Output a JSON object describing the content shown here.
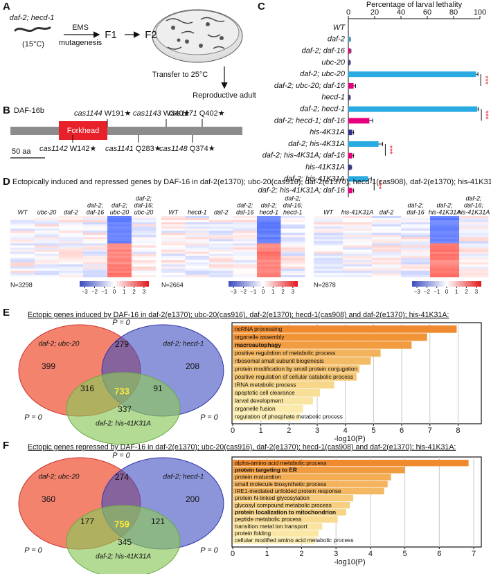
{
  "panel_a": {
    "label": "A",
    "strain": "daf-2; hecd-1",
    "temperature": "(15°C)",
    "treatment": "EMS",
    "treatment_detail": "mutagenesis",
    "f1": "F1",
    "f2": "F2",
    "transfer": "Transfer to 25°C",
    "outcome": "Reproductive adult"
  },
  "panel_b": {
    "label": "B",
    "protein": "DAF-16b",
    "domain": "Forkhead",
    "scale_bar": "50 aa",
    "mutations": [
      {
        "allele": "cas1144",
        "change": "W191★"
      },
      {
        "allele": "cas1143",
        "change": "W340★"
      },
      {
        "allele": "cas1171",
        "change": "Q402★"
      },
      {
        "allele": "cas1142",
        "change": "W142★"
      },
      {
        "allele": "cas1141",
        "change": "Q283★"
      },
      {
        "allele": "cas1148",
        "change": "Q374★"
      }
    ]
  },
  "panel_c": {
    "label": "C",
    "chart": {
      "type": "bar",
      "orientation": "horizontal",
      "title": "Percentage of larval lethality",
      "categories": [
        "WT",
        "daf-2",
        "daf-2; daf-16",
        "ubc-20",
        "daf-2; ubc-20",
        "daf-2; ubc-20; daf-16",
        "hecd-1",
        "daf-2; hecd-1",
        "daf-2; hecd-1; daf-16",
        "his-4K31A",
        "daf-2; his-4K31A",
        "daf-2; his-4K31A; daf-16",
        "his-41K31A",
        "daf-2; his-41K31A",
        "daf-2; his-41K31A; daf-16"
      ],
      "values": [
        0,
        1,
        1.5,
        1,
        97,
        4,
        1,
        98,
        16,
        3,
        23,
        3,
        2,
        15,
        3
      ],
      "errors": [
        0,
        0.5,
        0.5,
        0.5,
        1.5,
        1.5,
        0.5,
        1,
        2.5,
        1,
        3,
        1,
        0.5,
        2.5,
        1
      ],
      "colors": [
        "#2e3192",
        "#29abe2",
        "#e6007e",
        "#2e3192",
        "#29abe2",
        "#e6007e",
        "#2e3192",
        "#29abe2",
        "#e6007e",
        "#2e3192",
        "#29abe2",
        "#e6007e",
        "#2e3192",
        "#29abe2",
        "#e6007e"
      ],
      "xlim": [
        0,
        100
      ],
      "xticks": [
        0,
        20,
        40,
        60,
        80,
        100
      ],
      "significance": [
        "***",
        "***",
        "***",
        "***"
      ],
      "significance_color": "#e8202a"
    }
  },
  "panel_d": {
    "label": "D",
    "title": "Ectopically induced and repressed genes by DAF-16 in daf-2(e1370); ubc-20(cas916), daf-2(e1370); hecd-1(cas908), daf-2(e1370); his-41K31A",
    "heatmaps": [
      {
        "columns": [
          [
            "WT"
          ],
          [
            "ubc-20"
          ],
          [
            "daf-2"
          ],
          [
            "daf-2;",
            "daf-16"
          ],
          [
            "daf-2;",
            "ubc-20"
          ],
          [
            "daf-2;",
            "daf-16;",
            "ubc-20"
          ]
        ],
        "count": "N=3298"
      },
      {
        "columns": [
          [
            "WT"
          ],
          [
            "hecd-1"
          ],
          [
            "daf-2"
          ],
          [
            "daf-2;",
            "daf-16"
          ],
          [
            "daf-2;",
            "hecd-1"
          ],
          [
            "daf-2;",
            "daf-16;",
            "hecd-1"
          ]
        ],
        "count": "N=2664"
      },
      {
        "columns": [
          [
            "WT"
          ],
          [
            "his-41K31A"
          ],
          [
            "daf-2"
          ],
          [
            "daf-2;",
            "daf-16"
          ],
          [
            "daf-2;",
            "his-41K31A"
          ],
          [
            "daf-2;",
            "daf-16;",
            "his-41K31A"
          ]
        ],
        "count": "N=2878"
      }
    ],
    "colorbar_lim": [
      -3.5,
      3.5
    ],
    "colorbar_ticks": [
      {
        "value": -3,
        "label": "−3"
      },
      {
        "value": -2,
        "label": "−2"
      },
      {
        "value": -1,
        "label": "−1"
      },
      0,
      1,
      2,
      3
    ]
  },
  "panel_e": {
    "label": "E",
    "title": "Ectopic genes induced by DAF-16 in daf-2(e1370); ubc-20(cas916), daf-2(e1370); hecd-1(cas908) and daf-2(e1370); his-41K31A:",
    "venn": {
      "sets": [
        "daf-2; ubc-20",
        "daf-2; hecd-1",
        "daf-2; his-41K31A"
      ],
      "counts": [
        399,
        279,
        208,
        316,
        733,
        91,
        337
      ],
      "p_labels": [
        "P = 0",
        "P = 0",
        "P = 0"
      ]
    },
    "chart": {
      "type": "bar",
      "orientation": "horizontal",
      "x_label": "-log10(P)",
      "categories": [
        "ncRNA processing",
        "organelle assembly",
        "macroautophagy",
        "positive regulation of metabolic process",
        "ribosomal small subunit biogenesis",
        "protein modification by small protein conjugation",
        "positive regulation of cellular catabolic process",
        "tRNA metabolic process",
        "apoptotic cell clearance",
        "larval development",
        "organelle fusion",
        "regulation of phosphate metabolic process"
      ],
      "values": [
        7.95,
        6.9,
        6.35,
        5.25,
        4.9,
        4.5,
        4.4,
        3.6,
        3.1,
        2.85,
        2.5,
        2.4
      ],
      "bold": [
        false,
        false,
        true,
        false,
        false,
        false,
        false,
        false,
        false,
        false,
        false,
        false
      ],
      "colors": [
        "#ef8a2e",
        "#f09436",
        "#f19c40",
        "#f3b35c",
        "#f4bb66",
        "#f5c26f",
        "#f5c774",
        "#f7d68a",
        "#f8df98",
        "#f9e5a2",
        "#faeaab",
        "#fbeeb3"
      ],
      "xlim": [
        0,
        8.8
      ],
      "xticks": [
        0,
        1,
        2,
        3,
        4,
        5,
        6,
        7,
        8
      ]
    }
  },
  "panel_f": {
    "label": "F",
    "title": "Ectopic genes repressed by DAF-16 in daf-2(e1370); ubc-20(cas916), daf-2(e1370); hecd-1(cas908) and daf-2(e1370); his-41K31A:",
    "venn": {
      "sets": [
        "daf-2; ubc-20",
        "daf-2; hecd-1",
        "daf-2; his-41K31A"
      ],
      "counts": [
        360,
        274,
        200,
        177,
        759,
        121,
        345
      ],
      "p_labels": [
        "P = 0",
        "P = 0",
        "P = 0"
      ]
    },
    "chart": {
      "type": "bar",
      "orientation": "horizontal",
      "x_label": "-log10(P)",
      "categories": [
        "alpha-amino acid metabolic process",
        "protein targeting to ER",
        "protein maturation",
        "small molecule biosynthetic process",
        "IRE1-mediated unfolded protein response",
        "protein N-linked glycosylation",
        "glycosyl compound metabolic process",
        "protein localization to mitochondrion",
        "peptide metabolic process",
        "transition metal ion transport",
        "protein folding",
        "cellular modified amino acid metabolic process"
      ],
      "values": [
        6.85,
        5.0,
        4.6,
        4.5,
        4.4,
        3.5,
        3.4,
        3.3,
        3.05,
        2.6,
        2.5,
        2.4
      ],
      "bold": [
        false,
        true,
        false,
        false,
        false,
        false,
        false,
        true,
        false,
        false,
        false,
        false
      ],
      "colors": [
        "#ef8a2e",
        "#f19c40",
        "#f3ad55",
        "#f4b35d",
        "#f4b862",
        "#f6cb7b",
        "#f6cf80",
        "#f7d386",
        "#f8da90",
        "#f9e39f",
        "#fae7a5",
        "#fbedb1"
      ],
      "xlim": [
        0,
        7.2
      ],
      "xticks": [
        0,
        1,
        2,
        3,
        4,
        5,
        6,
        7
      ]
    }
  }
}
